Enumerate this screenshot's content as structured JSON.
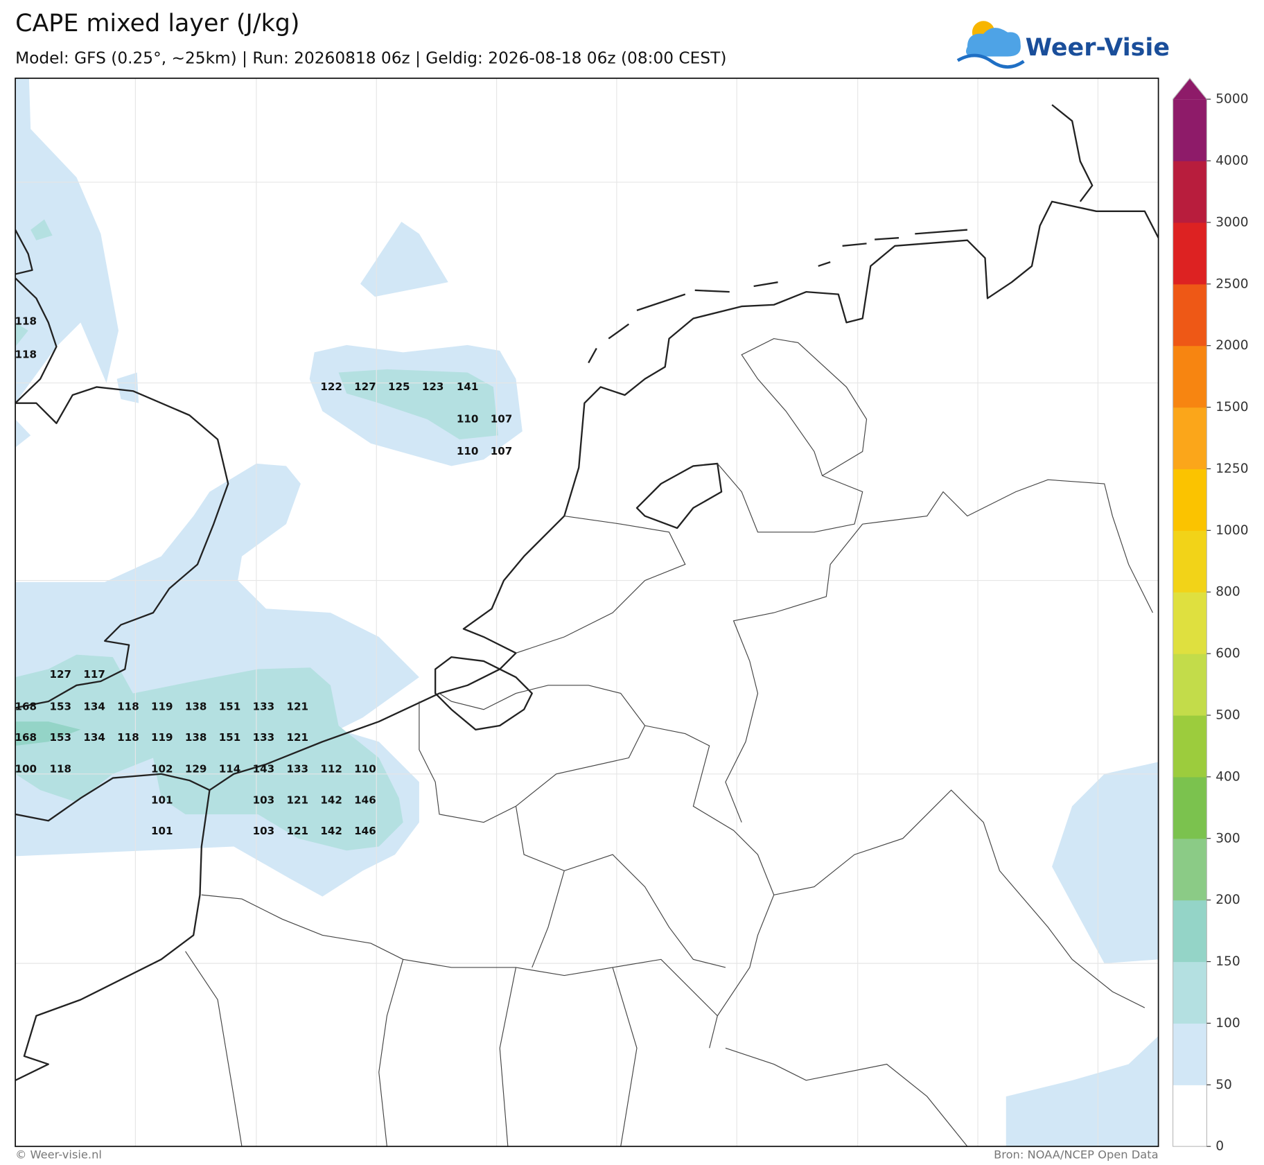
{
  "header": {
    "title": "CAPE mixed layer (J/kg)",
    "subtitle": "Model: GFS (0.25°, ~25km)  |  Run: 20260818 06z  |  Geldig: 2026-08-18 06z (08:00 CEST)",
    "logo": "Weer-Visie"
  },
  "colorbar": {
    "ticks": [
      0,
      50,
      100,
      150,
      200,
      300,
      400,
      500,
      600,
      800,
      1000,
      1250,
      1500,
      2000,
      2500,
      3000,
      4000,
      5000
    ],
    "colors": [
      "#ffffff",
      "#d2e7f6",
      "#b4e0e1",
      "#94d4c7",
      "#8bcb86",
      "#7bc24e",
      "#9ccc3d",
      "#c3dc4a",
      "#dfe03f",
      "#f2d318",
      "#fbc300",
      "#fba61a",
      "#f78511",
      "#ee5816",
      "#dd2222",
      "#b81d3d",
      "#8e1b69"
    ]
  },
  "map_labels": [
    118,
    118,
    122,
    127,
    125,
    123,
    141,
    110,
    107,
    110,
    107,
    127,
    117,
    168,
    153,
    134,
    118,
    119,
    138,
    151,
    133,
    121,
    168,
    153,
    134,
    118,
    119,
    138,
    151,
    133,
    121,
    100,
    118,
    102,
    129,
    114,
    143,
    133,
    112,
    110,
    101,
    103,
    121,
    142,
    146,
    101,
    103,
    121,
    142,
    146
  ],
  "footer": {
    "left": "© Weer-visie.nl",
    "right": "Bron: NOAA/NCEP Open Data"
  }
}
